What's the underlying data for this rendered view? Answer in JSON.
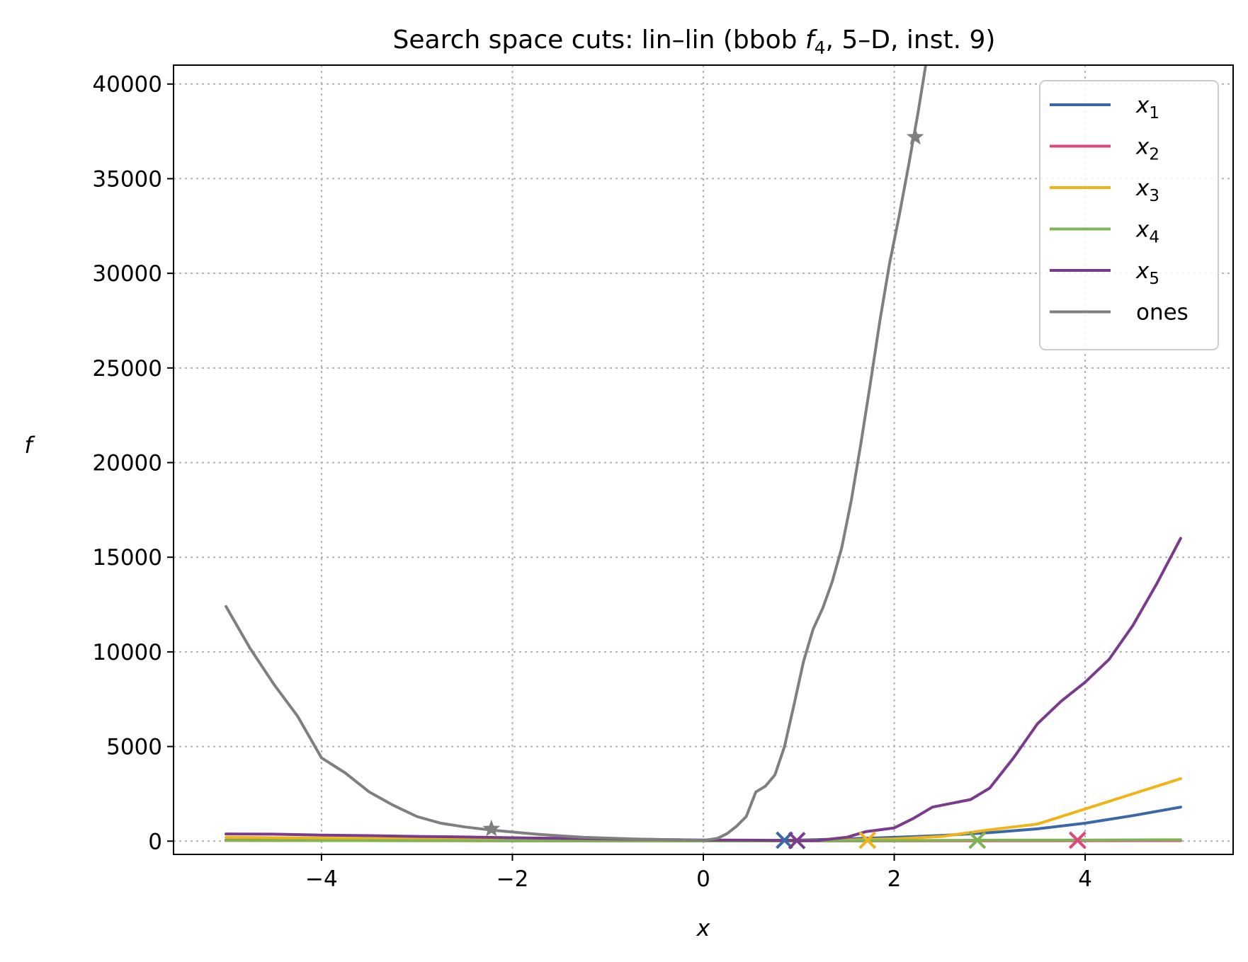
{
  "chart_data": {
    "type": "line",
    "title": "Search space cuts: lin–lin (bbob f4, 5–D, inst. 9)",
    "title_parts": {
      "prefix": "Search space cuts: lin–lin (bbob ",
      "func": "f",
      "func_sub": "4",
      "suffix": ", 5–D, inst. 9)"
    },
    "xlabel": "x",
    "ylabel": "f",
    "xlim": [
      -5.55,
      5.55
    ],
    "ylim": [
      -700,
      41000
    ],
    "xticks": [
      -4,
      -2,
      0,
      2,
      4
    ],
    "xtick_labels": [
      "−4",
      "−2",
      "0",
      "2",
      "4"
    ],
    "yticks": [
      0,
      5000,
      10000,
      15000,
      20000,
      25000,
      30000,
      35000,
      40000
    ],
    "ytick_labels": [
      "0",
      "5000",
      "10000",
      "15000",
      "20000",
      "25000",
      "30000",
      "35000",
      "40000"
    ],
    "grid": true,
    "legend_position": "top-right",
    "series": [
      {
        "name": "x1",
        "label_base": "x",
        "label_sub": "1",
        "color": "#3a67a8",
        "points": [
          [
            -5,
            60
          ],
          [
            -4,
            40
          ],
          [
            -3,
            30
          ],
          [
            -2,
            25
          ],
          [
            -1,
            20
          ],
          [
            0,
            20
          ],
          [
            0.5,
            30
          ],
          [
            1,
            60
          ],
          [
            1.5,
            120
          ],
          [
            2,
            200
          ],
          [
            2.5,
            300
          ],
          [
            3,
            450
          ],
          [
            3.5,
            650
          ],
          [
            4,
            950
          ],
          [
            4.5,
            1350
          ],
          [
            5,
            1800
          ]
        ],
        "marker": {
          "x": 0.85,
          "y": 50,
          "symbol": "x"
        }
      },
      {
        "name": "x2",
        "label_base": "x",
        "label_sub": "2",
        "color": "#e0457b",
        "points": [
          [
            -5,
            40
          ],
          [
            -4,
            30
          ],
          [
            -3,
            25
          ],
          [
            -2,
            20
          ],
          [
            -1,
            15
          ],
          [
            0,
            10
          ],
          [
            1,
            10
          ],
          [
            2,
            15
          ],
          [
            3,
            20
          ],
          [
            4,
            25
          ],
          [
            5,
            30
          ]
        ],
        "marker": {
          "x": 3.92,
          "y": 50,
          "symbol": "x"
        }
      },
      {
        "name": "x3",
        "label_base": "x",
        "label_sub": "3",
        "color": "#f0b416",
        "points": [
          [
            -5,
            200
          ],
          [
            -4,
            160
          ],
          [
            -3,
            120
          ],
          [
            -2,
            90
          ],
          [
            -1,
            60
          ],
          [
            0,
            30
          ],
          [
            0.5,
            30
          ],
          [
            1,
            40
          ],
          [
            1.5,
            60
          ],
          [
            2,
            120
          ],
          [
            2.5,
            250
          ],
          [
            3,
            600
          ],
          [
            3.5,
            900
          ],
          [
            4,
            1700
          ],
          [
            4.5,
            2500
          ],
          [
            5,
            3300
          ]
        ],
        "marker": {
          "x": 1.72,
          "y": 50,
          "symbol": "x"
        }
      },
      {
        "name": "x4",
        "label_base": "x",
        "label_sub": "4",
        "color": "#7eb356",
        "points": [
          [
            -5,
            40
          ],
          [
            -4,
            30
          ],
          [
            -3,
            25
          ],
          [
            -2,
            20
          ],
          [
            -1,
            15
          ],
          [
            0,
            10
          ],
          [
            1,
            15
          ],
          [
            2,
            30
          ],
          [
            3,
            50
          ],
          [
            4,
            60
          ],
          [
            5,
            70
          ]
        ],
        "marker": {
          "x": 2.87,
          "y": 50,
          "symbol": "x"
        }
      },
      {
        "name": "x5",
        "label_base": "x",
        "label_sub": "5",
        "color": "#7b3b8c",
        "points": [
          [
            -5,
            380
          ],
          [
            -4.5,
            370
          ],
          [
            -4,
            320
          ],
          [
            -3.5,
            290
          ],
          [
            -3,
            250
          ],
          [
            -2.5,
            220
          ],
          [
            -2,
            180
          ],
          [
            -1.5,
            150
          ],
          [
            -1,
            120
          ],
          [
            -0.5,
            90
          ],
          [
            0,
            60
          ],
          [
            0.5,
            50
          ],
          [
            1,
            30
          ],
          [
            1.2,
            40
          ],
          [
            1.5,
            200
          ],
          [
            1.7,
            500
          ],
          [
            2,
            700
          ],
          [
            2.2,
            1200
          ],
          [
            2.4,
            1800
          ],
          [
            2.6,
            2000
          ],
          [
            2.8,
            2200
          ],
          [
            3,
            2800
          ],
          [
            3.25,
            4400
          ],
          [
            3.5,
            6200
          ],
          [
            3.75,
            7400
          ],
          [
            4,
            8400
          ],
          [
            4.25,
            9600
          ],
          [
            4.5,
            11400
          ],
          [
            4.75,
            13600
          ],
          [
            5,
            16000
          ]
        ],
        "marker": {
          "x": 0.98,
          "y": 30,
          "symbol": "x"
        }
      },
      {
        "name": "ones",
        "label_base": "ones",
        "label_sub": "",
        "color": "#7f7f7f",
        "points": [
          [
            -5,
            12400
          ],
          [
            -4.75,
            10200
          ],
          [
            -4.5,
            8300
          ],
          [
            -4.25,
            6600
          ],
          [
            -4,
            4400
          ],
          [
            -3.75,
            3600
          ],
          [
            -3.5,
            2600
          ],
          [
            -3.25,
            1900
          ],
          [
            -3,
            1300
          ],
          [
            -2.75,
            950
          ],
          [
            -2.5,
            750
          ],
          [
            -2.25,
            600
          ],
          [
            -2,
            480
          ],
          [
            -1.75,
            370
          ],
          [
            -1.5,
            280
          ],
          [
            -1.25,
            200
          ],
          [
            -1,
            160
          ],
          [
            -0.75,
            120
          ],
          [
            -0.5,
            90
          ],
          [
            -0.25,
            70
          ],
          [
            0,
            40
          ],
          [
            0.15,
            150
          ],
          [
            0.25,
            400
          ],
          [
            0.35,
            800
          ],
          [
            0.45,
            1300
          ],
          [
            0.55,
            2600
          ],
          [
            0.65,
            2900
          ],
          [
            0.75,
            3500
          ],
          [
            0.85,
            5000
          ],
          [
            0.95,
            7200
          ],
          [
            1.05,
            9500
          ],
          [
            1.15,
            11200
          ],
          [
            1.25,
            12300
          ],
          [
            1.35,
            13700
          ],
          [
            1.45,
            15500
          ],
          [
            1.55,
            18000
          ],
          [
            1.65,
            21000
          ],
          [
            1.75,
            24200
          ],
          [
            1.85,
            27500
          ],
          [
            1.95,
            30500
          ],
          [
            2.05,
            33000
          ],
          [
            2.15,
            35700
          ],
          [
            2.25,
            38500
          ],
          [
            2.33,
            41000
          ]
        ],
        "marker": {
          "x": 2.22,
          "y": 37200,
          "symbol": "star"
        },
        "marker2": {
          "x": -2.22,
          "y": 650,
          "symbol": "star"
        }
      }
    ]
  }
}
